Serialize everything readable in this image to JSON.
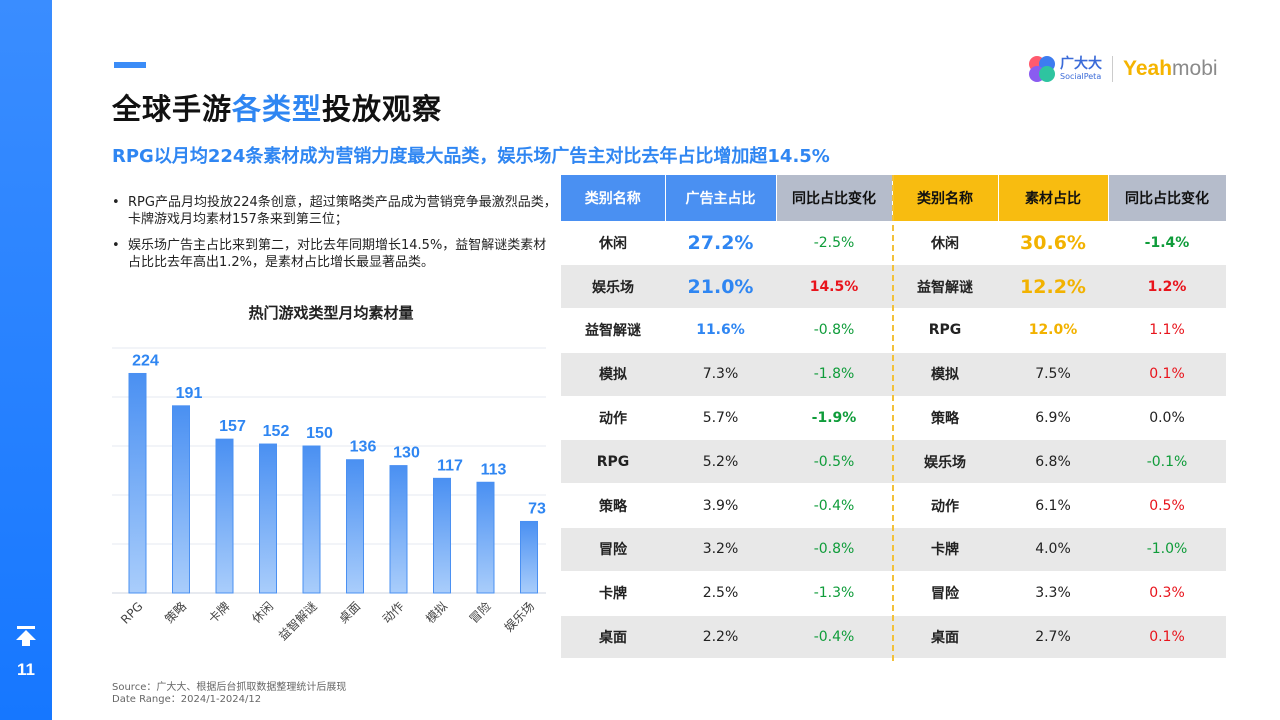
{
  "page": {
    "number": "11",
    "title_pre": "全球手游",
    "title_hl": "各类型",
    "title_post": "投放观察",
    "subtitle": "RPG以月均224条素材成为营销力度最大品类，娱乐场广告主对比去年占比增加超14.5%",
    "logo_cn": "广大大",
    "logo_en": "SocialPeta",
    "logo_yeah": "Yeah",
    "logo_mobi": "mobi",
    "bullets": [
      "RPG产品月均投放224条创意，超过策略类产品成为营销竞争最激烈品类，卡牌游戏月均素材157条来到第三位；",
      "娱乐场广告主占比来到第二，对比去年同期增长14.5%，益智解谜类素材占比比去年高出1.2%，是素材占比增长最显著品类。"
    ],
    "source": "Source：广大大、根据后台抓取数据整理统计后展现",
    "date_range": "Date Range：2024/1-2024/12"
  },
  "chart_data": {
    "type": "bar",
    "title": "热门游戏类型月均素材量",
    "categories": [
      "RPG",
      "策略",
      "卡牌",
      "休闲",
      "益智解谜",
      "桌面",
      "动作",
      "模拟",
      "冒险",
      "娱乐场"
    ],
    "values": [
      224,
      191,
      157,
      152,
      150,
      136,
      130,
      117,
      113,
      73
    ],
    "ylim": [
      0,
      250
    ],
    "grid": true,
    "bar_color": "#4a90f2",
    "label_color": "#2f86f2"
  },
  "table": {
    "headers": [
      "类别名称",
      "广告主占比",
      "同比占比变化",
      "类别名称",
      "素材占比",
      "同比占比变化"
    ],
    "rows": [
      {
        "a_name": "休闲",
        "a_share": "27.2%",
        "a_change": "-2.5%",
        "b_name": "休闲",
        "b_share": "30.6%",
        "b_change": "-1.4%"
      },
      {
        "a_name": "娱乐场",
        "a_share": "21.0%",
        "a_change": "14.5%",
        "b_name": "益智解谜",
        "b_share": "12.2%",
        "b_change": "1.2%"
      },
      {
        "a_name": "益智解谜",
        "a_share": "11.6%",
        "a_change": "-0.8%",
        "b_name": "RPG",
        "b_share": "12.0%",
        "b_change": "1.1%"
      },
      {
        "a_name": "模拟",
        "a_share": "7.3%",
        "a_change": "-1.8%",
        "b_name": "模拟",
        "b_share": "7.5%",
        "b_change": "0.1%"
      },
      {
        "a_name": "动作",
        "a_share": "5.7%",
        "a_change": "-1.9%",
        "b_name": "策略",
        "b_share": "6.9%",
        "b_change": "0.0%"
      },
      {
        "a_name": "RPG",
        "a_share": "5.2%",
        "a_change": "-0.5%",
        "b_name": "娱乐场",
        "b_share": "6.8%",
        "b_change": "-0.1%"
      },
      {
        "a_name": "策略",
        "a_share": "3.9%",
        "a_change": "-0.4%",
        "b_name": "动作",
        "b_share": "6.1%",
        "b_change": "0.5%"
      },
      {
        "a_name": "冒险",
        "a_share": "3.2%",
        "a_change": "-0.8%",
        "b_name": "卡牌",
        "b_share": "4.0%",
        "b_change": "-1.0%"
      },
      {
        "a_name": "卡牌",
        "a_share": "2.5%",
        "a_change": "-1.3%",
        "b_name": "冒险",
        "b_share": "3.3%",
        "b_change": "0.3%"
      },
      {
        "a_name": "桌面",
        "a_share": "2.2%",
        "a_change": "-0.4%",
        "b_name": "桌面",
        "b_share": "2.7%",
        "b_change": "0.1%"
      }
    ]
  }
}
